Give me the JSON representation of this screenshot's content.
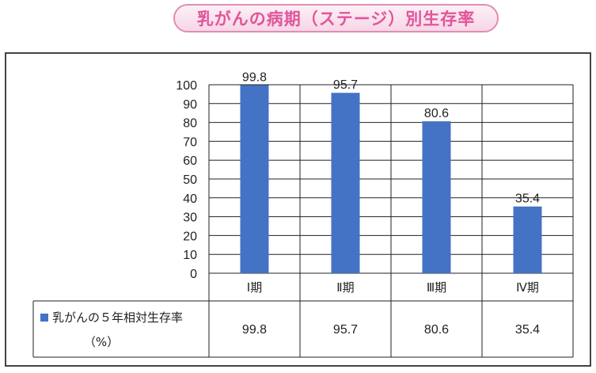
{
  "title": "乳がんの病期（ステージ）別生存率",
  "chart_data": {
    "type": "bar",
    "categories": [
      "Ⅰ期",
      "Ⅱ期",
      "Ⅲ期",
      "Ⅳ期"
    ],
    "series": [
      {
        "name": "乳がんの５年相対生存率（%）",
        "values": [
          99.8,
          95.7,
          80.6,
          35.4
        ],
        "color": "#4472c4"
      }
    ],
    "ylim": [
      0,
      100
    ],
    "yticks": [
      0,
      10,
      20,
      30,
      40,
      50,
      60,
      70,
      80,
      90,
      100
    ],
    "grid": true,
    "data_table": true,
    "legend_line1": "乳がんの５年相対生存率",
    "legend_line2": "（%）"
  },
  "colors": {
    "bar": "#4472c4",
    "title_text": "#e0559b",
    "title_border": "#e28cb6"
  }
}
